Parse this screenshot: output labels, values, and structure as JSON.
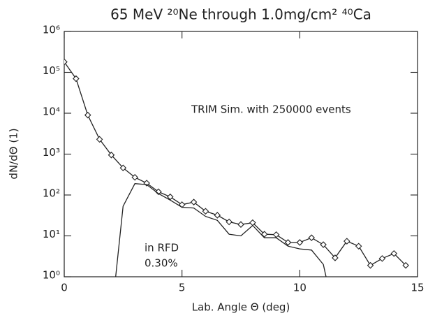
{
  "chart_data": {
    "type": "line",
    "title": "65 MeV ²⁰Ne through 1.0mg/cm² ⁴⁰Ca",
    "x_label": "Lab. Angle Θ (deg)",
    "y_label": "dN/dΘ (1)",
    "annotations": [
      "TRIM Sim. with 250000 events",
      "in RFD",
      "0.30%"
    ],
    "log_y": true,
    "xlim": [
      0,
      15
    ],
    "xticks": [
      0,
      5,
      10,
      15
    ],
    "ylim": [
      1,
      1000000
    ],
    "yticks": [
      {
        "value": 1,
        "label": "10⁰"
      },
      {
        "value": 10,
        "label": "10¹"
      },
      {
        "value": 100,
        "label": "10²"
      },
      {
        "value": 1000,
        "label": "10³"
      },
      {
        "value": 10000,
        "label": "10⁴"
      },
      {
        "value": 100000,
        "label": "10⁵"
      },
      {
        "value": 1000000,
        "label": "10⁶"
      }
    ],
    "series": [
      {
        "color": "#222222",
        "markers": true,
        "x": [
          0,
          0.5,
          1,
          1.5,
          2,
          2.5,
          3,
          3.5,
          4,
          4.5,
          5,
          5.5,
          6,
          6.5,
          7,
          7.5,
          8,
          8.5,
          9,
          9.5,
          10,
          10.5,
          11,
          11.5,
          12,
          12.5,
          13,
          13.5,
          14,
          14.5
        ],
        "values": [
          180000,
          70000,
          9000,
          2300,
          950,
          460,
          270,
          195,
          120,
          90,
          58,
          67,
          40,
          32,
          22,
          19,
          21,
          11,
          10.7,
          6.9,
          6.9,
          9,
          6.1,
          2.9,
          7.4,
          5.6,
          1.9,
          2.8,
          3.7,
          1.9
        ]
      },
      {
        "color": "#222222",
        "markers": false,
        "x": [
          2,
          2.5,
          3,
          3.5,
          4,
          4.5,
          5,
          5.5,
          6,
          6.5,
          7,
          7.5,
          8,
          8.5,
          9,
          9.5,
          10,
          10.5,
          11,
          11.5
        ],
        "values": [
          0.1,
          53,
          190,
          180,
          108,
          75,
          50,
          48,
          30,
          24,
          11,
          10,
          18,
          9,
          9,
          5.6,
          4.8,
          4.5,
          2,
          0.1
        ]
      }
    ]
  }
}
